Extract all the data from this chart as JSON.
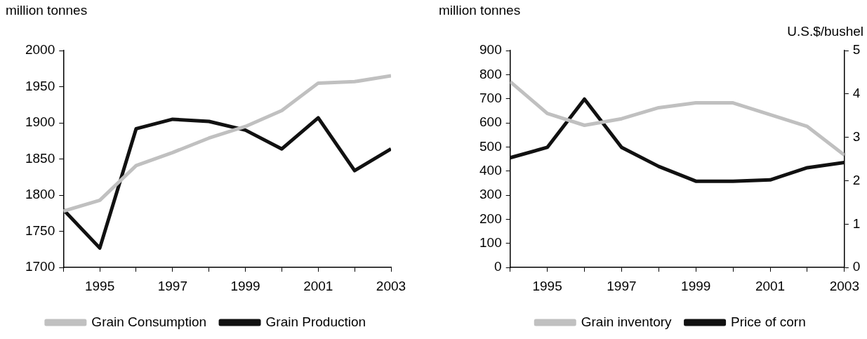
{
  "chart_data": [
    {
      "type": "line",
      "ylabel": "million tonnes",
      "x": [
        1994,
        1995,
        1996,
        1997,
        1998,
        1999,
        2000,
        2001,
        2002,
        2003
      ],
      "xlim": [
        1994,
        2003
      ],
      "xticks": [
        {
          "value": 1994,
          "label": null
        },
        1995,
        {
          "value": 1996,
          "label": null
        },
        1997,
        {
          "value": 1998,
          "label": null
        },
        1999,
        {
          "value": 2000,
          "label": null
        },
        2001,
        {
          "value": 2002,
          "label": null
        },
        2003
      ],
      "ylim": [
        1700,
        2000
      ],
      "yticks": [
        1700,
        1750,
        1800,
        1850,
        1900,
        1950,
        2000
      ],
      "grid": false,
      "legend": "bottom",
      "marker": "none",
      "line_style": "solid",
      "series": [
        {
          "name": "Grain Consumption",
          "color": "#c0c0c0",
          "values": [
            1778,
            1793,
            1841,
            1859,
            1879,
            1895,
            1917,
            1955,
            1957,
            1965
          ]
        },
        {
          "name": "Grain Production",
          "color": "#111111",
          "values": [
            1780,
            1727,
            1892,
            1905,
            1902,
            1890,
            1864,
            1907,
            1834,
            1864
          ]
        }
      ]
    },
    {
      "type": "line",
      "ylabel": "million tonnes",
      "y2label": "U.S.$/bushel",
      "x": [
        1994,
        1995,
        1996,
        1997,
        1998,
        1999,
        2000,
        2001,
        2002,
        2003
      ],
      "xlim": [
        1994,
        2003
      ],
      "xticks": [
        {
          "value": 1994,
          "label": null
        },
        1995,
        {
          "value": 1996,
          "label": null
        },
        1997,
        {
          "value": 1998,
          "label": null
        },
        1999,
        {
          "value": 2000,
          "label": null
        },
        2001,
        {
          "value": 2002,
          "label": null
        },
        2003
      ],
      "ylim": [
        0,
        900
      ],
      "yticks": [
        0,
        100,
        200,
        300,
        400,
        500,
        600,
        700,
        800,
        900
      ],
      "y2lim": [
        0,
        5
      ],
      "y2ticks": [
        0,
        1,
        2,
        3,
        4,
        5
      ],
      "grid": false,
      "legend": "bottom",
      "marker": "none",
      "line_style": "solid",
      "series": [
        {
          "name": "Grain inventory",
          "color": "#c0c0c0",
          "values": [
            771,
            639,
            590,
            617,
            663,
            683,
            683,
            634,
            585,
            466
          ]
        },
        {
          "name": "Price of corn",
          "color": "#111111",
          "axis": "y2",
          "values": [
            2.53,
            2.77,
            3.88,
            2.77,
            2.33,
            1.99,
            1.99,
            2.02,
            2.3,
            2.42
          ]
        }
      ]
    }
  ]
}
